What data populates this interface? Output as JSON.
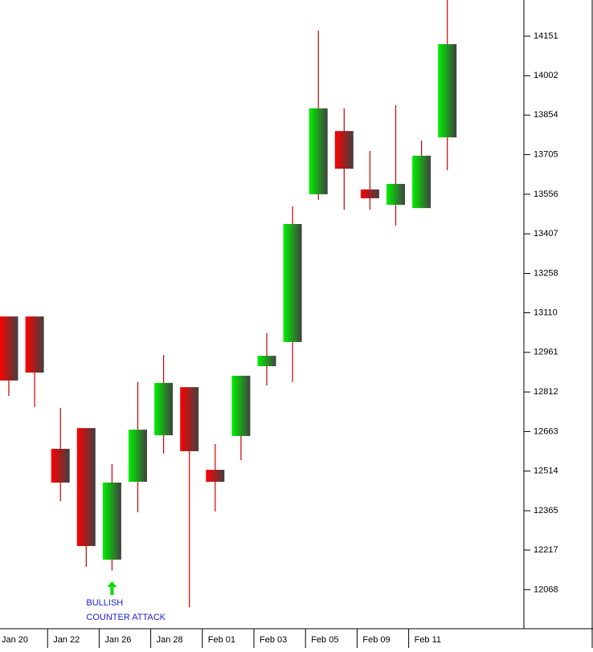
{
  "chart_data": {
    "type": "candlestick",
    "categories": [
      "Jan 20",
      null,
      "Jan 22",
      null,
      "Jan 26",
      null,
      "Jan 28",
      null,
      "Feb 01",
      null,
      "Feb 03",
      null,
      "Feb 05",
      null,
      "Feb 09",
      null,
      "Feb 11",
      null
    ],
    "open": [
      13096,
      13096,
      12598,
      12676,
      12181,
      12474,
      12649,
      12830,
      12519,
      12646,
      12909,
      13000,
      13556,
      13794,
      13574,
      13516,
      13504,
      13770
    ],
    "high": [
      13096,
      13096,
      12752,
      12676,
      12540,
      12849,
      12951,
      12830,
      12616,
      12873,
      13033,
      13510,
      14172,
      13879,
      13719,
      13891,
      13758,
      14300
    ],
    "low": [
      12797,
      12755,
      12401,
      12154,
      12141,
      12359,
      12580,
      12002,
      12362,
      12555,
      12836,
      12849,
      13535,
      13498,
      13498,
      13438,
      13504,
      13646
    ],
    "close": [
      12855,
      12885,
      12471,
      12232,
      12471,
      12670,
      12846,
      12589,
      12474,
      12873,
      12948,
      13444,
      13879,
      13652,
      13541,
      13595,
      13701,
      14121
    ],
    "up_color": "#00e000",
    "down_color": "#e00000",
    "wick_color": "#cc0000",
    "ylim": [
      11921,
      14287
    ],
    "yticks": [
      12068,
      12217,
      12365,
      12514,
      12663,
      12812,
      12961,
      13110,
      13258,
      13407,
      13556,
      13705,
      13854,
      14002,
      14151
    ],
    "annotation": {
      "index": 4,
      "lines": [
        "BULLISH",
        "COUNTER ATTACK"
      ],
      "color": "#2020e0",
      "arrow_color": "#00dd00"
    }
  }
}
